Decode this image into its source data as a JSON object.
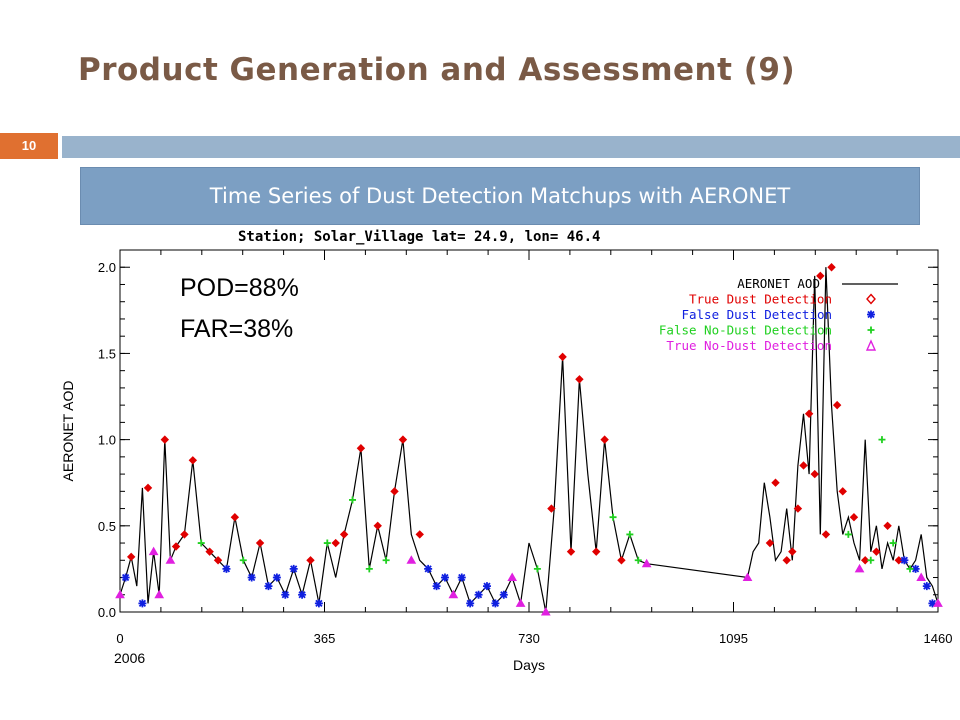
{
  "slide": {
    "title": "Product Generation and Assessment  (9)",
    "page_number": "10",
    "subtitle": "Time Series of Dust Detection Matchups with AERONET"
  },
  "chart_data": {
    "type": "line",
    "title": "Station; Solar_Village lat=  24.9, lon=   46.4",
    "xlabel": "Days",
    "ylabel": "AERONET AOD",
    "xlim": [
      0,
      1460
    ],
    "ylim": [
      0,
      2.1
    ],
    "xticks": [
      0,
      365,
      730,
      1095,
      1460
    ],
    "xtick_labels": [
      "0",
      "365",
      "730",
      "1095",
      "1460"
    ],
    "yticks": [
      0,
      0.5,
      1.0,
      1.5,
      2.0
    ],
    "ytick_labels": [
      "0.0",
      "0.5",
      "1.0",
      "1.5",
      "2.0"
    ],
    "x_start_label": "2006",
    "annotations": [
      "POD=88%",
      "FAR=38%"
    ],
    "legend_position": "top-right",
    "legend": [
      {
        "name": "AERONET AOD",
        "marker": "line",
        "color": "#000000"
      },
      {
        "name": "True Dust Detection",
        "marker": "diamond",
        "color": "#e00000"
      },
      {
        "name": "False Dust Detection",
        "marker": "asterisk",
        "color": "#1020e0"
      },
      {
        "name": "False No-Dust Detection",
        "marker": "plus",
        "color": "#20d020"
      },
      {
        "name": "True No-Dust Detection",
        "marker": "triangle",
        "color": "#e020e0"
      }
    ],
    "series": [
      {
        "name": "AERONET AOD",
        "color": "#000000",
        "x": [
          0,
          10,
          20,
          30,
          40,
          50,
          60,
          70,
          80,
          90,
          100,
          115,
          130,
          145,
          160,
          175,
          190,
          205,
          220,
          235,
          250,
          265,
          280,
          295,
          310,
          325,
          340,
          355,
          370,
          385,
          400,
          415,
          430,
          445,
          460,
          475,
          490,
          505,
          520,
          535,
          550,
          565,
          580,
          595,
          610,
          625,
          640,
          655,
          670,
          685,
          700,
          715,
          730,
          745,
          760,
          775,
          790,
          805,
          820,
          835,
          850,
          865,
          880,
          895,
          910,
          925,
          940,
          1120,
          1130,
          1140,
          1150,
          1160,
          1170,
          1180,
          1190,
          1200,
          1210,
          1220,
          1230,
          1240,
          1250,
          1260,
          1270,
          1280,
          1290,
          1300,
          1310,
          1320,
          1330,
          1340,
          1350,
          1360,
          1370,
          1380,
          1390,
          1400,
          1410,
          1420,
          1430,
          1440,
          1450,
          1460
        ],
        "y": [
          0.1,
          0.2,
          0.32,
          0.15,
          0.72,
          0.05,
          0.35,
          0.1,
          1.0,
          0.3,
          0.38,
          0.45,
          0.88,
          0.4,
          0.35,
          0.3,
          0.25,
          0.55,
          0.3,
          0.2,
          0.4,
          0.15,
          0.2,
          0.1,
          0.25,
          0.1,
          0.3,
          0.05,
          0.4,
          0.2,
          0.45,
          0.65,
          0.95,
          0.25,
          0.5,
          0.3,
          0.7,
          1.0,
          0.45,
          0.3,
          0.25,
          0.15,
          0.2,
          0.1,
          0.2,
          0.05,
          0.1,
          0.15,
          0.05,
          0.1,
          0.2,
          0.05,
          0.4,
          0.25,
          0.0,
          0.6,
          1.48,
          0.35,
          1.35,
          0.8,
          0.35,
          1.0,
          0.55,
          0.3,
          0.45,
          0.3,
          0.28,
          0.2,
          0.35,
          0.4,
          0.75,
          0.55,
          0.3,
          0.35,
          0.6,
          0.3,
          0.85,
          1.15,
          0.8,
          1.95,
          0.45,
          2.0,
          1.2,
          0.7,
          0.45,
          0.55,
          0.4,
          0.3,
          1.0,
          0.35,
          0.5,
          0.25,
          0.4,
          0.3,
          0.5,
          0.3,
          0.25,
          0.3,
          0.45,
          0.2,
          0.15,
          0.05
        ]
      },
      {
        "name": "True Dust Detection",
        "color": "#e00000",
        "x": [
          20,
          50,
          80,
          100,
          115,
          130,
          160,
          175,
          205,
          250,
          340,
          385,
          400,
          430,
          460,
          490,
          505,
          535,
          770,
          790,
          805,
          820,
          850,
          865,
          895,
          1160,
          1170,
          1190,
          1200,
          1210,
          1220,
          1230,
          1240,
          1250,
          1260,
          1270,
          1280,
          1290,
          1310,
          1330,
          1350,
          1370,
          1390
        ],
        "y": [
          0.32,
          0.72,
          1.0,
          0.38,
          0.45,
          0.88,
          0.35,
          0.3,
          0.55,
          0.4,
          0.3,
          0.4,
          0.45,
          0.95,
          0.5,
          0.7,
          1.0,
          0.45,
          0.6,
          1.48,
          0.35,
          1.35,
          0.35,
          1.0,
          0.3,
          0.4,
          0.75,
          0.3,
          0.35,
          0.6,
          0.85,
          1.15,
          0.8,
          1.95,
          0.45,
          2.0,
          1.2,
          0.7,
          0.55,
          0.3,
          0.35,
          0.5,
          0.3
        ]
      },
      {
        "name": "False Dust Detection",
        "color": "#1020e0",
        "x": [
          10,
          40,
          190,
          235,
          265,
          280,
          295,
          310,
          325,
          355,
          550,
          565,
          580,
          610,
          625,
          640,
          655,
          670,
          685,
          1400,
          1420,
          1440,
          1450
        ],
        "y": [
          0.2,
          0.05,
          0.25,
          0.2,
          0.15,
          0.2,
          0.1,
          0.25,
          0.1,
          0.05,
          0.25,
          0.15,
          0.2,
          0.2,
          0.05,
          0.1,
          0.15,
          0.05,
          0.1,
          0.3,
          0.25,
          0.15,
          0.05
        ]
      },
      {
        "name": "False No-Dust Detection",
        "color": "#20d020",
        "x": [
          145,
          220,
          370,
          415,
          445,
          475,
          745,
          880,
          910,
          925,
          1300,
          1340,
          1360,
          1380,
          1410
        ],
        "y": [
          0.4,
          0.3,
          0.4,
          0.65,
          0.25,
          0.3,
          0.25,
          0.55,
          0.45,
          0.3,
          0.45,
          0.3,
          1.0,
          0.4,
          0.25
        ]
      },
      {
        "name": "True No-Dust Detection",
        "color": "#e020e0",
        "x": [
          0,
          60,
          70,
          90,
          520,
          595,
          700,
          715,
          760,
          940,
          1120,
          1320,
          1430,
          1460
        ],
        "y": [
          0.1,
          0.35,
          0.1,
          0.3,
          0.3,
          0.1,
          0.2,
          0.05,
          0.0,
          0.28,
          0.2,
          0.25,
          0.2,
          0.05
        ]
      }
    ]
  }
}
